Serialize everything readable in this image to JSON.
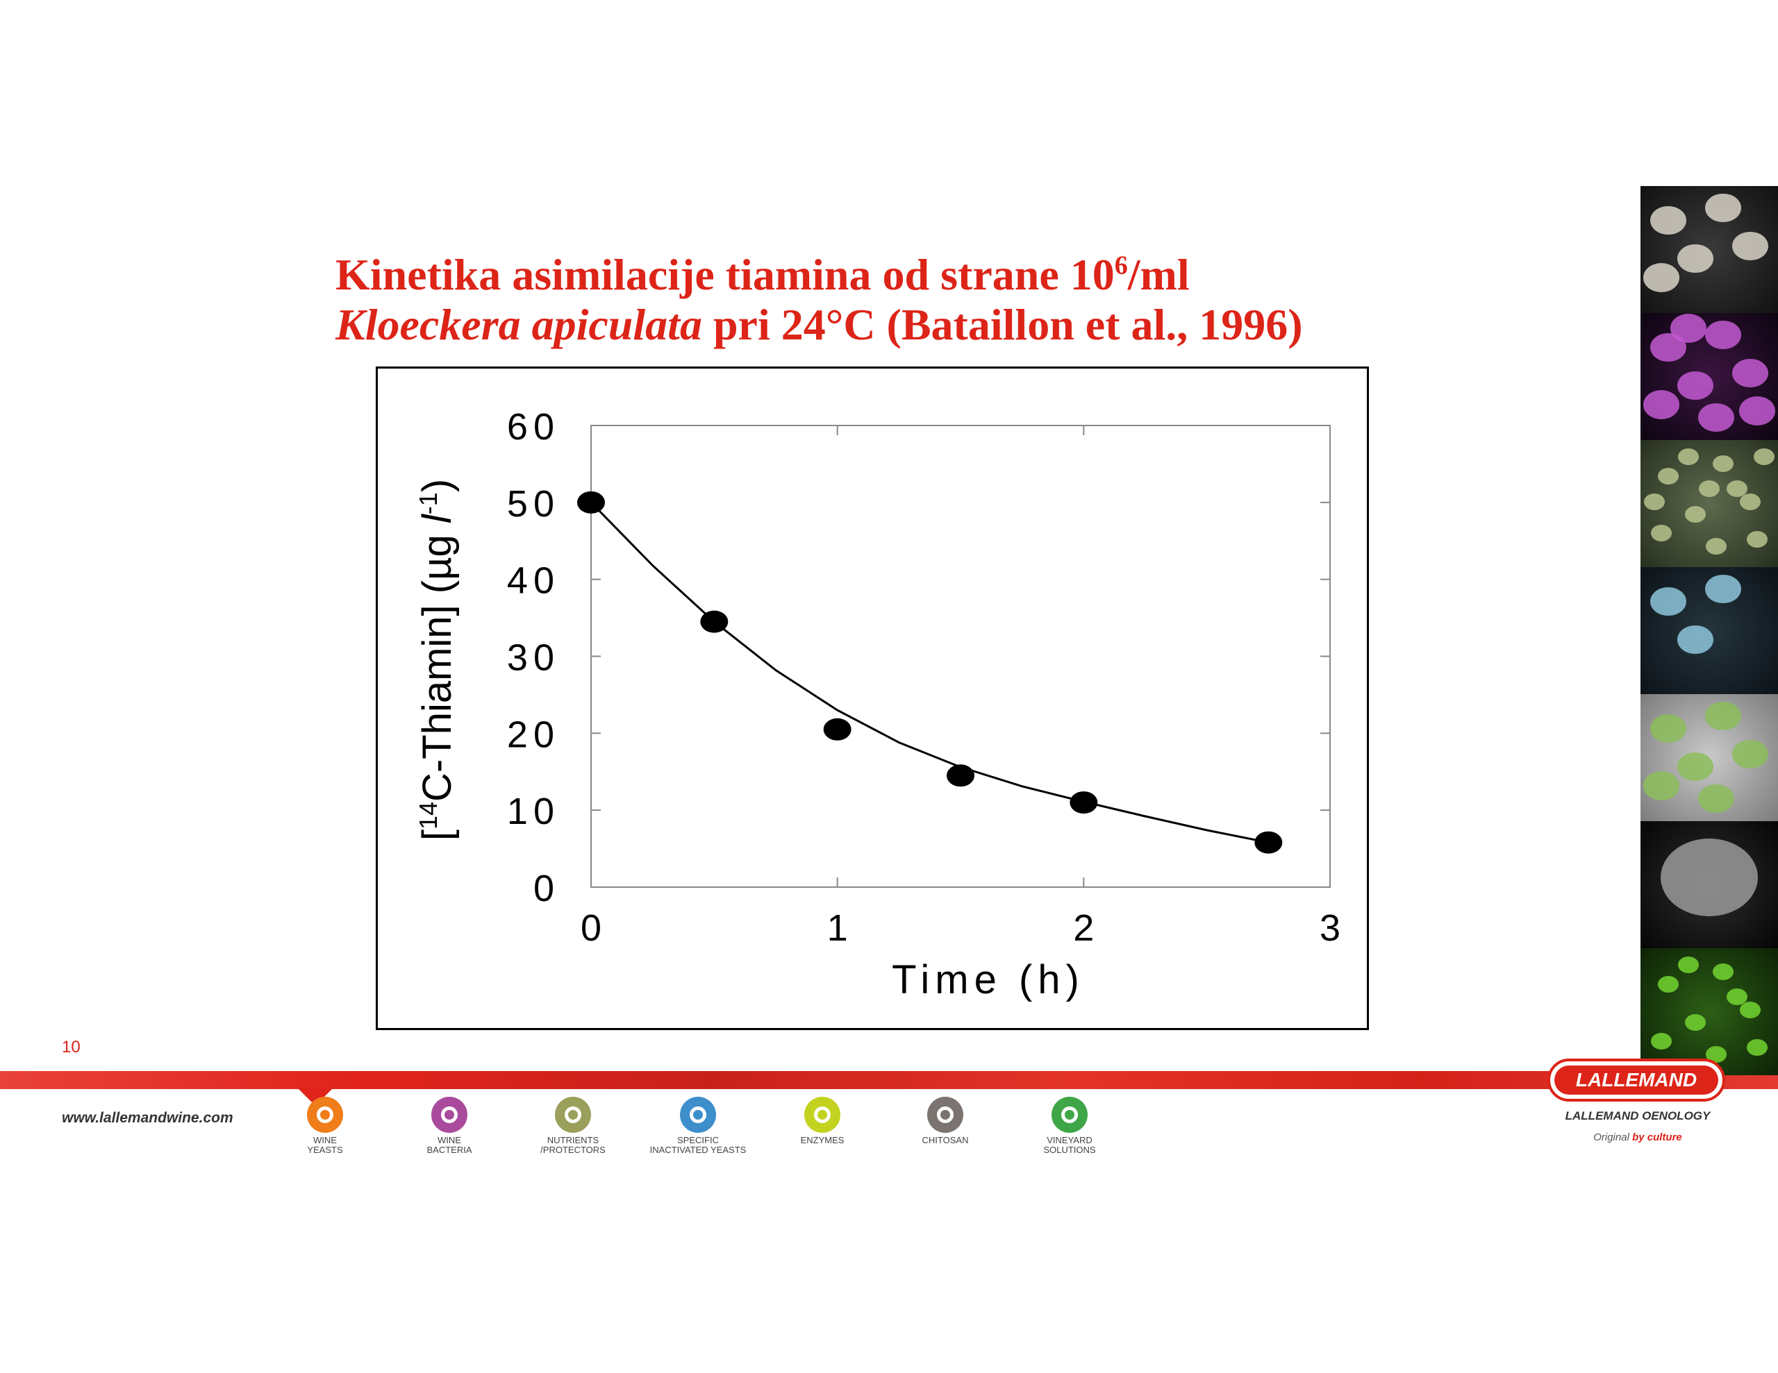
{
  "slide": {
    "title_line1": "Kinetika asimilacije tiamina od strane 10",
    "title_sup": "6",
    "title_line1_end": "/ml",
    "title_line2_italic": "Kloeckera apiculata",
    "title_line2_rest": " pri  24°C (Bataillon et al., 1996)",
    "slide_number": "10"
  },
  "chart_data": {
    "type": "scatter",
    "title": "",
    "xlabel": "Time (h)",
    "ylabel": "[14C-Thiamin] (µg l-1)",
    "ylabel_parts": {
      "open": "[",
      "sup1": "14",
      "mid": "C-Thiamin] (µg ",
      "l": "l",
      "sup2": "-1",
      "close": ")"
    },
    "xlim": [
      0,
      3
    ],
    "ylim": [
      0,
      60
    ],
    "xticks": [
      "0",
      "1",
      "2",
      "3"
    ],
    "yticks": [
      "0",
      "10",
      "20",
      "30",
      "40",
      "50",
      "60"
    ],
    "grid": false,
    "series": [
      {
        "x": [
          0,
          0.5,
          1,
          1.5,
          2,
          2.75
        ],
        "y": [
          50,
          34.5,
          20.5,
          14.5,
          11,
          5.8
        ]
      }
    ],
    "fit_curve": {
      "x": [
        0,
        0.25,
        0.5,
        0.75,
        1,
        1.25,
        1.5,
        1.75,
        2,
        2.25,
        2.5,
        2.75
      ],
      "y": [
        50,
        41.8,
        34.5,
        28.2,
        23.0,
        18.8,
        15.6,
        13.1,
        11.1,
        9.2,
        7.4,
        5.8
      ]
    },
    "marker_color": "#000000"
  },
  "footer": {
    "website": "www.lallemandwine.com",
    "products": [
      {
        "label": "WINE\nYEASTS",
        "color": "#ef7d1a",
        "icon": "wine-yeasts-icon"
      },
      {
        "label": "WINE\nBACTERIA",
        "color": "#a94a9c",
        "icon": "wine-bacteria-icon"
      },
      {
        "label": "NUTRIENTS\n/PROTECTORS",
        "color": "#9aa05c",
        "icon": "nutrients-icon"
      },
      {
        "label": "SPECIFIC\nINACTIVATED YEASTS",
        "color": "#3d8fcb",
        "icon": "inactivated-yeasts-icon"
      },
      {
        "label": "ENZYMES",
        "color": "#c3d21f",
        "icon": "enzymes-icon"
      },
      {
        "label": "CHITOSAN",
        "color": "#7a7370",
        "icon": "chitosan-icon"
      },
      {
        "label": "VINEYARD\nSOLUTIONS",
        "color": "#3fa648",
        "icon": "vineyard-icon"
      }
    ],
    "logo_text": "LALLEMAND",
    "oenology": "LALLEMAND OENOLOGY",
    "tagline_plain": "Original ",
    "tagline_bold": "by culture",
    "accent_color": "#dd2418"
  },
  "photos": [
    "yeast-cells-photo",
    "purple-yeast-photo",
    "green-bacteria-photo",
    "blue-cells-photo",
    "green-discs-photo",
    "spiky-spore-photo",
    "green-leaf-photo"
  ]
}
